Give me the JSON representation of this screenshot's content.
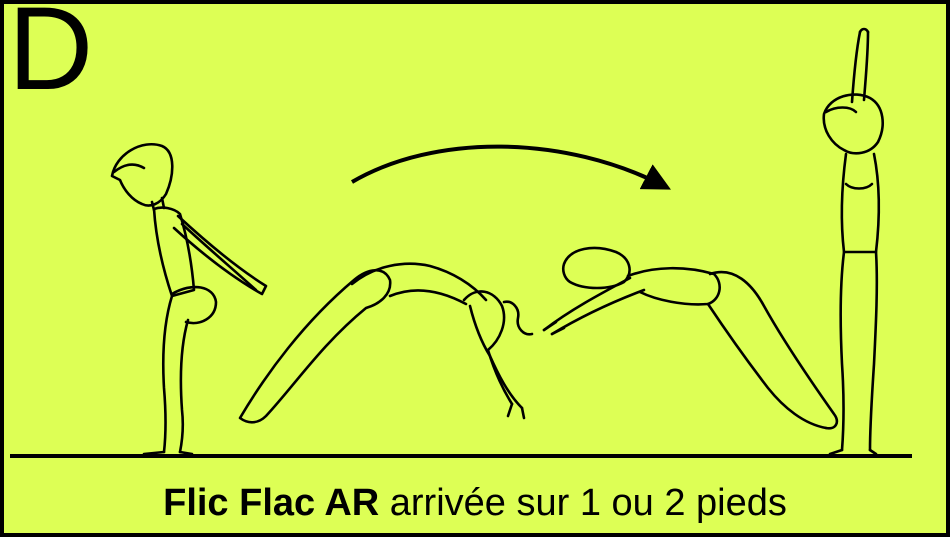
{
  "card": {
    "level_letter": "D",
    "background_color": "#ddff55",
    "line_color": "#000000"
  },
  "caption": {
    "element_name": "Flic Flac AR",
    "description": "arrivée sur 1 ou 2 pieds"
  },
  "illustration": {
    "phases": [
      "squat-start",
      "back-bridge",
      "handstand-arch",
      "stand-arms-up"
    ],
    "icons": [
      "rotation-arrow-icon",
      "floor-line"
    ]
  }
}
